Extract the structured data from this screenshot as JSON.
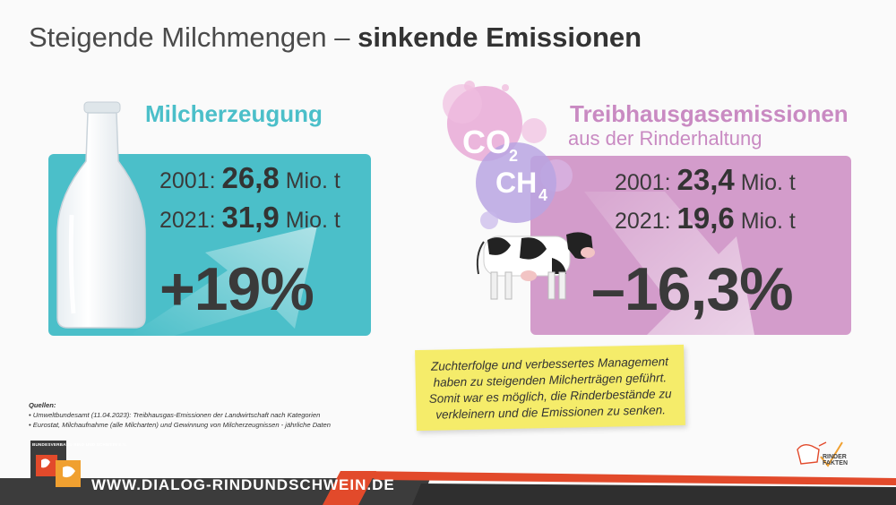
{
  "title": {
    "light": "Steigende Milchmengen –",
    "bold": "sinkende Emissionen"
  },
  "milk": {
    "heading": "Milcherzeugung",
    "year1": "2001:",
    "value1": "26,8",
    "unit1": "Mio. t",
    "year2": "2021:",
    "value2": "31,9",
    "unit2": "Mio. t",
    "change": "+19%"
  },
  "ghg": {
    "heading": "Treibhausgasemissionen",
    "subheading": "aus der Rinderhaltung",
    "year1": "2001:",
    "value1": "23,4",
    "unit1": "Mio. t",
    "year2": "2021:",
    "value2": "19,6",
    "unit2": "Mio. t",
    "change": "–16,3%",
    "gas1": "CO",
    "gas1_sub": "2",
    "gas2": "CH",
    "gas2_sub": "4"
  },
  "note": {
    "lines": [
      "Zuchterfolge und verbessertes Management",
      "haben zu steigenden Milcherträgen geführt.",
      "Somit war es möglich, die Rinderbestände zu",
      "verkleinern und die Emissionen zu senken."
    ]
  },
  "sources": {
    "title": "Quellen:",
    "items": [
      "Umweltbundesamt (11.04.2023): Treibhausgas-Emissionen der Landwirtschaft nach Kategorien",
      "Eurostat, Milchaufnahme (alle Milcharten) und Gewinnung von Milcherzeugnissen - jährliche Daten"
    ]
  },
  "footer": {
    "url": "WWW.DIALOG-RINDUNDSCHWEIN.DE",
    "logo_left_text": "BUNDESVERBAND RIND UND SCHWEIN E.V.",
    "logo_right_line1": "RINDER",
    "logo_right_line2": "FAKTEN"
  },
  "colors": {
    "teal": "#4bbfc9",
    "pink": "#d39ccb",
    "note_yellow": "#f5ec6a",
    "footer_red": "#e24a2b",
    "footer_dark": "#3c3c3c"
  },
  "icons": [
    "milk-bottle-icon",
    "cow-icon",
    "up-arrow-icon",
    "down-arrow-icon",
    "gas-bubbles-icon"
  ]
}
